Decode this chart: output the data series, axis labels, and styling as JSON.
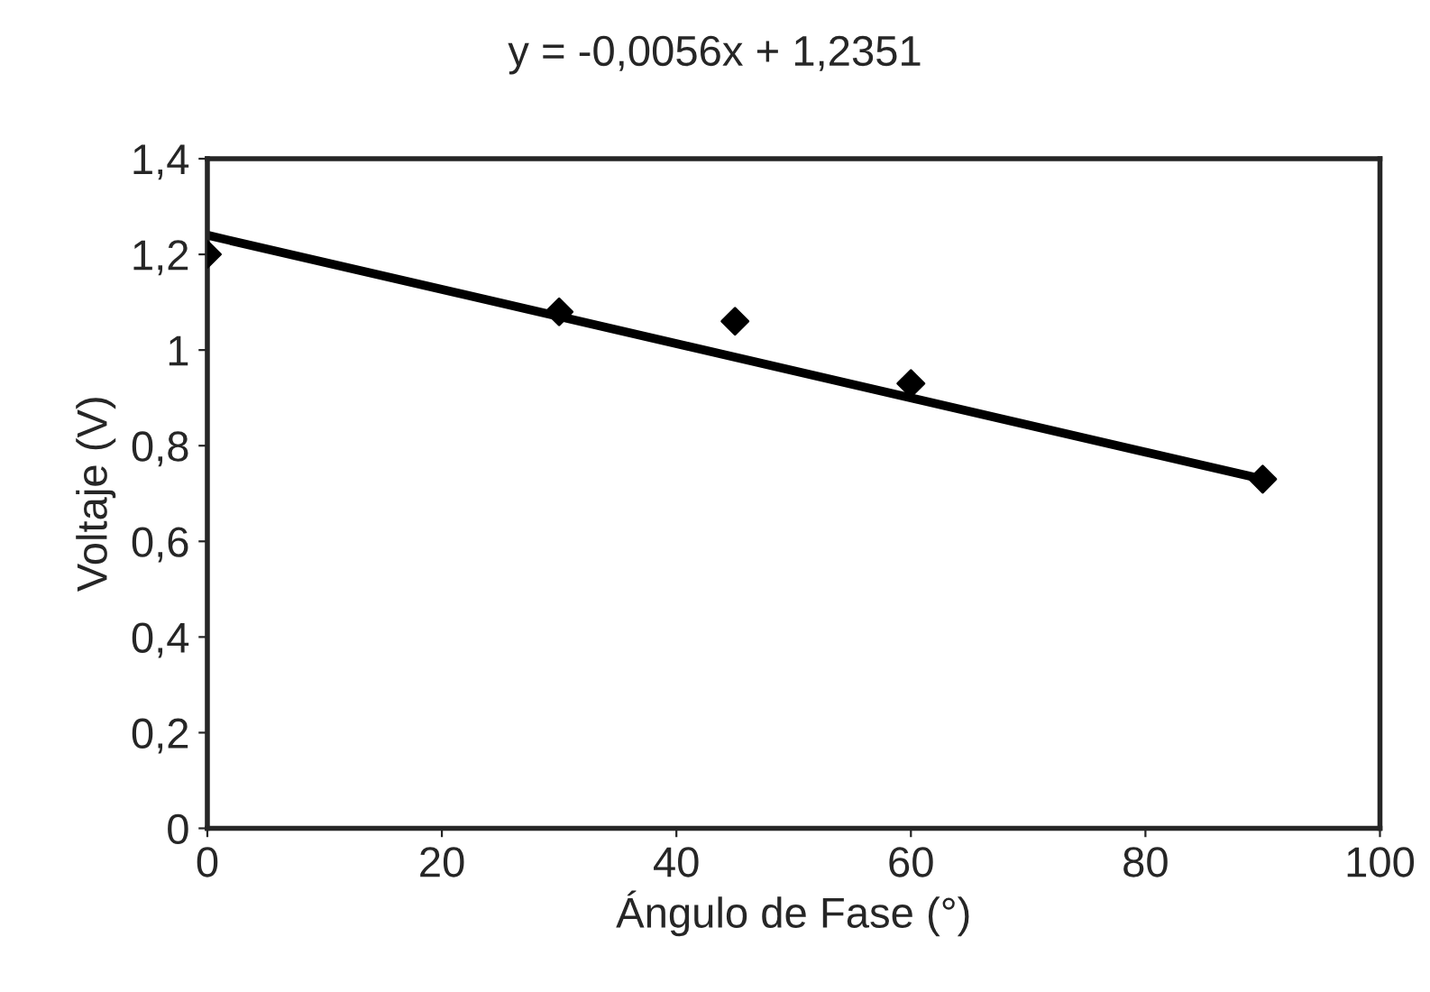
{
  "chart_data": {
    "type": "scatter",
    "title": "y = -0,0056x + 1,2351",
    "xlabel": "Ángulo de Fase (°)",
    "ylabel": "Voltaje (V)",
    "series": [
      {
        "color": "#000000",
        "marker": "diamond",
        "x": [
          0,
          30,
          45,
          60,
          90
        ],
        "values": [
          1.2,
          1.08,
          1.06,
          0.93,
          0.73
        ]
      },
      {
        "type": "line",
        "color": "#000000",
        "marker": "none",
        "line_style": "solid",
        "x": [
          0,
          90
        ],
        "values": [
          1.24,
          0.73
        ]
      }
    ],
    "xlim": [
      0,
      100
    ],
    "xticks": [
      0,
      20,
      40,
      60,
      80,
      100
    ],
    "ylim": [
      0,
      1.4
    ],
    "yticks": [
      0,
      {
        "value": 0.2,
        "label": "0,2"
      },
      {
        "value": 0.4,
        "label": "0,4"
      },
      {
        "value": 0.6,
        "label": "0,6"
      },
      {
        "value": 0.8,
        "label": "0,8"
      },
      1,
      {
        "value": 1.2,
        "label": "1,2"
      },
      {
        "value": 1.4,
        "label": "1,4"
      }
    ],
    "grid": false,
    "legend": false
  }
}
